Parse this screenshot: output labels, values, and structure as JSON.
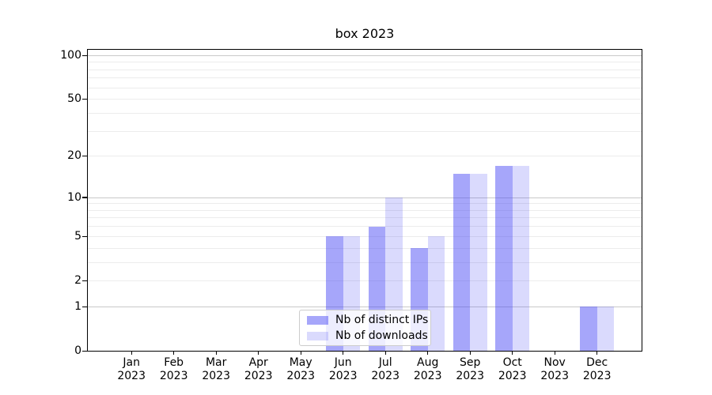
{
  "chart_data": {
    "type": "bar",
    "title": "box 2023",
    "categories": [
      "Jan",
      "Feb",
      "Mar",
      "Apr",
      "May",
      "Jun",
      "Jul",
      "Aug",
      "Sep",
      "Oct",
      "Nov",
      "Dec"
    ],
    "xtick_year": "2023",
    "series": [
      {
        "name": "Nb of distinct IPs",
        "color": "rgba(70,70,245,0.48)",
        "values": [
          0,
          0,
          0,
          0,
          0,
          5,
          6,
          4,
          15,
          17,
          0,
          1
        ]
      },
      {
        "name": "Nb of downloads",
        "color": "rgba(70,70,245,0.20)",
        "values": [
          0,
          0,
          0,
          0,
          0,
          5,
          10,
          5,
          15,
          17,
          0,
          1
        ]
      }
    ],
    "yscale": "log1p",
    "ylim": [
      0,
      111
    ],
    "yticks": [
      0,
      1,
      2,
      5,
      10,
      20,
      50,
      100
    ],
    "gridlines": {
      "major": [
        1,
        10,
        100
      ],
      "minor": [
        2,
        3,
        4,
        5,
        6,
        7,
        8,
        9,
        20,
        30,
        40,
        50,
        60,
        70,
        80,
        90
      ],
      "major_color": "#c9c9c9",
      "minor_color": "#ececec"
    },
    "legend_position": "lower center"
  }
}
